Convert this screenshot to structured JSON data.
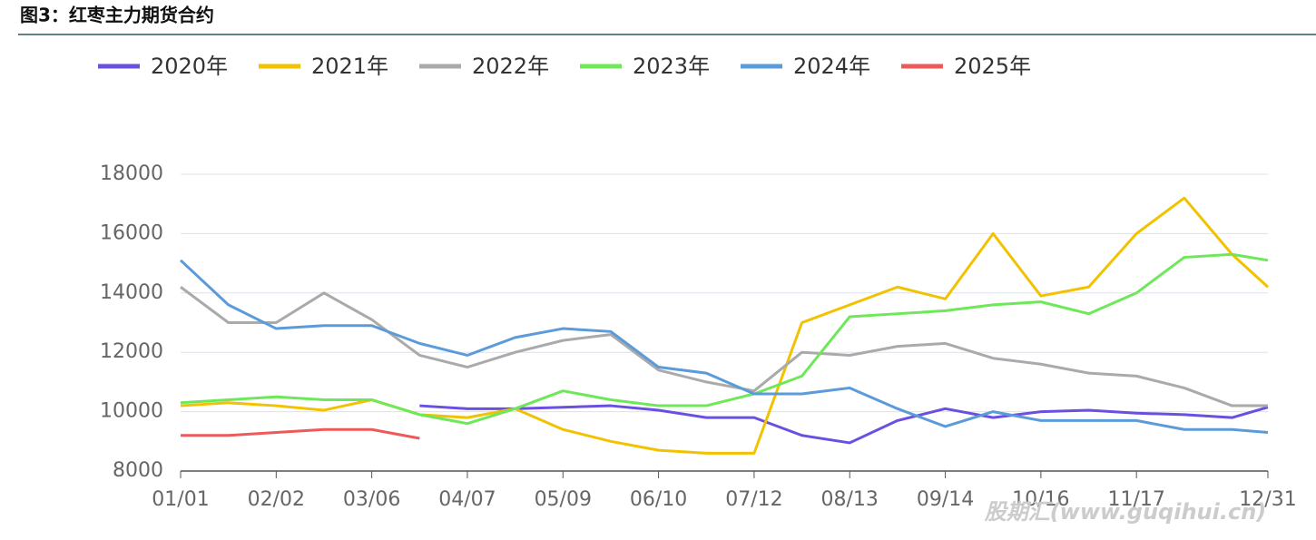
{
  "page_title": "图3：红枣主力期货合约",
  "watermark": "股期汇(www.guqihui.cn)",
  "chart_data": {
    "type": "line",
    "x": [
      1,
      17,
      33,
      49,
      65,
      81,
      97,
      113,
      129,
      145,
      161,
      177,
      193,
      209,
      225,
      241,
      257,
      273,
      289,
      305,
      321,
      337,
      353,
      365
    ],
    "xlim": [
      1,
      365
    ],
    "xticks": [
      {
        "value": 1,
        "label": "01/01"
      },
      {
        "value": 33,
        "label": "02/02"
      },
      {
        "value": 65,
        "label": "03/06"
      },
      {
        "value": 97,
        "label": "04/07"
      },
      {
        "value": 129,
        "label": "05/09"
      },
      {
        "value": 161,
        "label": "06/10"
      },
      {
        "value": 193,
        "label": "07/12"
      },
      {
        "value": 225,
        "label": "08/13"
      },
      {
        "value": 257,
        "label": "09/14"
      },
      {
        "value": 289,
        "label": "10/16"
      },
      {
        "value": 321,
        "label": "11/17"
      },
      {
        "value": 365,
        "label": "12/31"
      }
    ],
    "ylim": [
      8000,
      18000
    ],
    "yticks": [
      8000,
      10000,
      12000,
      14000,
      16000,
      18000
    ],
    "grid": true,
    "legend": "top",
    "series": [
      {
        "name": "2020年",
        "color": "#6a4fe0",
        "values": [
          null,
          null,
          null,
          null,
          null,
          10200,
          10100,
          10100,
          10150,
          10200,
          10050,
          9800,
          9800,
          9200,
          8950,
          9700,
          10100,
          9800,
          10000,
          10050,
          9950,
          9900,
          9800,
          10150
        ]
      },
      {
        "name": "2021年",
        "color": "#f2c200",
        "values": [
          10200,
          10300,
          10200,
          10050,
          10400,
          9900,
          9800,
          10100,
          9400,
          9000,
          8700,
          8600,
          8600,
          13000,
          13600,
          14200,
          13800,
          16000,
          13900,
          14200,
          16000,
          17200,
          15300,
          14200
        ]
      },
      {
        "name": "2022年",
        "color": "#aaaaaa",
        "values": [
          14200,
          13000,
          13000,
          14000,
          13100,
          11900,
          11500,
          12000,
          12400,
          12600,
          11400,
          11000,
          10700,
          12000,
          11900,
          12200,
          12300,
          11800,
          11600,
          11300,
          11200,
          10800,
          10200,
          10200
        ]
      },
      {
        "name": "2023年",
        "color": "#6ee85a",
        "values": [
          10300,
          10400,
          10500,
          10400,
          10400,
          9900,
          9600,
          10100,
          10700,
          10400,
          10200,
          10200,
          10600,
          11200,
          13200,
          13300,
          13400,
          13600,
          13700,
          13300,
          14000,
          15200,
          15300,
          15100
        ]
      },
      {
        "name": "2024年",
        "color": "#5b9bd9",
        "values": [
          15100,
          13600,
          12800,
          12900,
          12900,
          12300,
          11900,
          12500,
          12800,
          12700,
          11500,
          11300,
          10600,
          10600,
          10800,
          10100,
          9500,
          10000,
          9700,
          9700,
          9700,
          9400,
          9400,
          9300
        ]
      },
      {
        "name": "2025年",
        "color": "#ee5a5a",
        "values": [
          9200,
          9200,
          9300,
          9400,
          9400,
          9100,
          null,
          null,
          null,
          null,
          null,
          null,
          null,
          null,
          null,
          null,
          null,
          null,
          null,
          null,
          null,
          null,
          null,
          null
        ]
      }
    ]
  }
}
